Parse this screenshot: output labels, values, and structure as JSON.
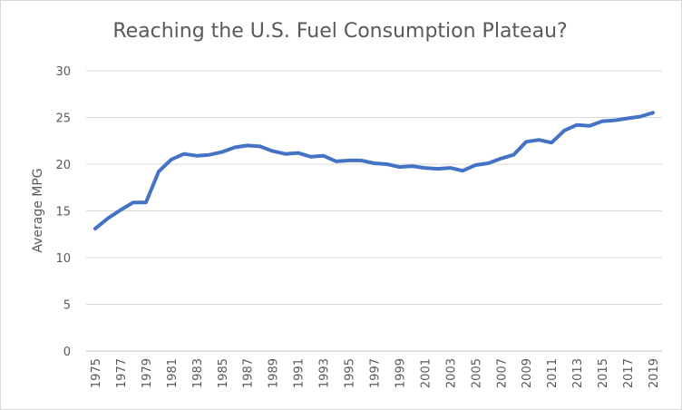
{
  "chart_data": {
    "type": "line",
    "title": "Reaching the U.S. Fuel Consumption Plateau?",
    "xlabel": "",
    "ylabel": "Average MPG",
    "ylim": [
      0,
      30
    ],
    "yticks": [
      0,
      5,
      10,
      15,
      20,
      25,
      30
    ],
    "xticks": [
      1975,
      1977,
      1979,
      1981,
      1983,
      1985,
      1987,
      1989,
      1991,
      1993,
      1995,
      1997,
      1999,
      2001,
      2003,
      2005,
      2007,
      2009,
      2011,
      2013,
      2015,
      2017,
      2019
    ],
    "grid": true,
    "legend": "none",
    "series": [
      {
        "color": "#4472c4",
        "x": [
          1975,
          1976,
          1977,
          1978,
          1979,
          1980,
          1981,
          1982,
          1983,
          1984,
          1985,
          1986,
          1987,
          1988,
          1989,
          1990,
          1991,
          1992,
          1993,
          1994,
          1995,
          1996,
          1997,
          1998,
          1999,
          2000,
          2001,
          2002,
          2003,
          2004,
          2005,
          2006,
          2007,
          2008,
          2009,
          2010,
          2011,
          2012,
          2013,
          2014,
          2015,
          2016,
          2017,
          2018,
          2019
        ],
        "values": [
          13.1,
          14.2,
          15.1,
          15.9,
          15.9,
          19.2,
          20.5,
          21.1,
          20.9,
          21.0,
          21.3,
          21.8,
          22.0,
          21.9,
          21.4,
          21.1,
          21.2,
          20.8,
          20.9,
          20.3,
          20.4,
          20.4,
          20.1,
          20.0,
          19.7,
          19.8,
          19.6,
          19.5,
          19.6,
          19.3,
          19.9,
          20.1,
          20.6,
          21.0,
          22.4,
          22.6,
          22.3,
          23.6,
          24.2,
          24.1,
          24.6,
          24.7,
          24.9,
          25.1,
          25.5
        ]
      }
    ]
  }
}
